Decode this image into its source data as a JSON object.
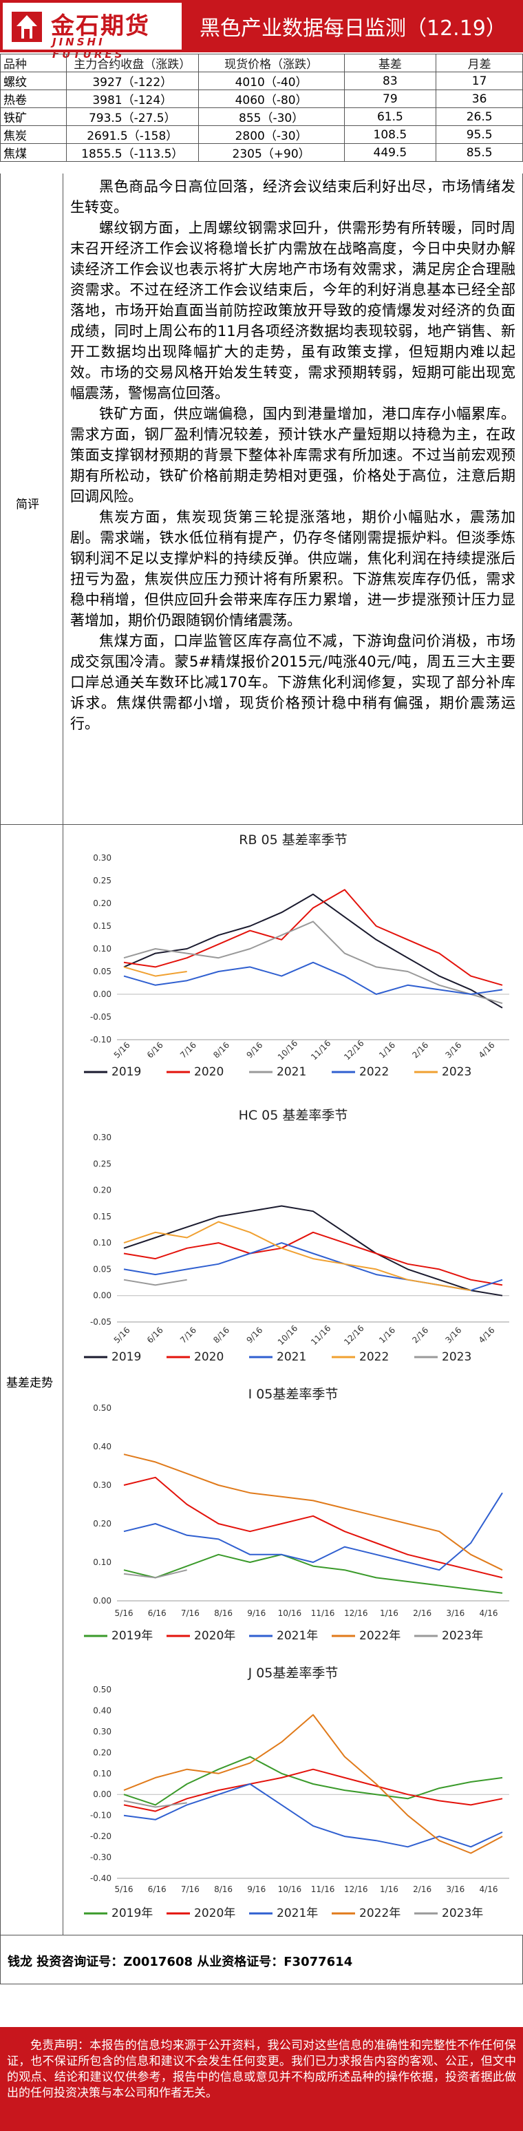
{
  "header": {
    "logo_cn": "金石期货",
    "logo_en": "JINSHI FUTURES",
    "title": "黑色产业数据每日监测（12.19）"
  },
  "table": {
    "columns": [
      "品种",
      "主力合约收盘（涨跌）",
      "现货价格（涨跌）",
      "基差",
      "月差"
    ],
    "rows": [
      [
        "螺纹",
        "3927（-122）",
        "4010（-40）",
        "83",
        "17"
      ],
      [
        "热卷",
        "3981（-124）",
        "4060（-80）",
        "79",
        "36"
      ],
      [
        "铁矿",
        "793.5（-27.5）",
        "855（-30）",
        "61.5",
        "26.5"
      ],
      [
        "焦炭",
        "2691.5（-158）",
        "2800（-30）",
        "108.5",
        "95.5"
      ],
      [
        "焦煤",
        "1855.5（-113.5）",
        "2305（+90）",
        "449.5",
        "85.5"
      ]
    ]
  },
  "commentary": {
    "label": "简评",
    "paragraphs": [
      "黑色商品今日高位回落，经济会议结束后利好出尽，市场情绪发生转变。",
      "螺纹钢方面，上周螺纹钢需求回升，供需形势有所转暖，同时周末召开经济工作会议将稳增长扩内需放在战略高度，今日中央财办解读经济工作会议也表示将扩大房地产市场有效需求，满足房企合理融资需求。不过在经济工作会议结束后，今年的利好消息基本已经全部落地，市场开始直面当前防控政策放开导致的疫情爆发对经济的负面成绩，同时上周公布的11月各项经济数据均表现较弱，地产销售、新开工数据均出现降幅扩大的走势，虽有政策支撑，但短期内难以起效。市场的交易风格开始发生转变，需求预期转弱，短期可能出现宽幅震荡，警惕高位回落。",
      "铁矿方面，供应端偏稳，国内到港量增加，港口库存小幅累库。需求方面，钢厂盈利情况较差，预计铁水产量短期以持稳为主，在政策面支撑钢材预期的背景下整体补库需求有所加速。不过当前宏观预期有所松动，铁矿价格前期走势相对更强，价格处于高位，注意后期回调风险。",
      "焦炭方面，焦炭现货第三轮提涨落地，期价小幅贴水，震荡加剧。需求端，铁水低位稍有提产，仍存冬储刚需提振炉料。但淡季炼钢利润不足以支撑炉料的持续反弹。供应端，焦化利润在持续提涨后扭亏为盈，焦炭供应压力预计将有所累积。下游焦炭库存仍低，需求稳中稍增，但供应回升会带来库存压力累增，进一步提涨预计压力显著增加，期价仍跟随钢价情绪震荡。",
      "焦煤方面，口岸监管区库存高位不减，下游询盘问价消极，市场成交氛围冷清。蒙5#精煤报价2015元/吨涨40元/吨，周五三大主要口岸总通关车数环比减170车。下游焦化利润修复，实现了部分补库诉求。焦煤供需都小增，现货价格预计稳中稍有偏强，期价震荡运行。"
    ]
  },
  "basis_label": "基差走势",
  "charts": [
    {
      "title": "RB 05 基差率季节",
      "type": "line",
      "ylim": [
        -0.1,
        0.3
      ],
      "yticks": [
        "0.30",
        "0.25",
        "0.20",
        "0.15",
        "0.10",
        "0.05",
        "0.00",
        "-0.05",
        "-0.10"
      ],
      "xticks": [
        "5/16",
        "6/16",
        "7/16",
        "8/16",
        "9/16",
        "10/16",
        "11/16",
        "12/16",
        "1/16",
        "2/16",
        "3/16",
        "4/16"
      ],
      "series": [
        {
          "name": "2019",
          "color": "#1a1a2e",
          "values": [
            0.06,
            0.09,
            0.1,
            0.13,
            0.15,
            0.18,
            0.22,
            0.17,
            0.12,
            0.08,
            0.04,
            0.01,
            -0.03
          ]
        },
        {
          "name": "2020",
          "color": "#e3120b",
          "values": [
            0.07,
            0.06,
            0.08,
            0.11,
            0.14,
            0.12,
            0.19,
            0.23,
            0.15,
            0.12,
            0.09,
            0.04,
            0.02
          ]
        },
        {
          "name": "2021",
          "color": "#999999",
          "values": [
            0.08,
            0.1,
            0.09,
            0.08,
            0.1,
            0.13,
            0.16,
            0.09,
            0.06,
            0.05,
            0.02,
            0.0,
            -0.02
          ]
        },
        {
          "name": "2022",
          "color": "#2f5fd0",
          "values": [
            0.04,
            0.02,
            0.03,
            0.05,
            0.06,
            0.04,
            0.07,
            0.04,
            0.0,
            0.02,
            0.01,
            0.0,
            0.01
          ]
        },
        {
          "name": "2023",
          "color": "#f0a030",
          "values": [
            0.06,
            0.04,
            0.05
          ]
        }
      ]
    },
    {
      "title": "HC 05 基差率季节",
      "type": "line",
      "ylim": [
        -0.05,
        0.3
      ],
      "yticks": [
        "0.30",
        "0.25",
        "0.20",
        "0.15",
        "0.10",
        "0.05",
        "0.00",
        "-0.05"
      ],
      "xticks": [
        "5/16",
        "6/16",
        "7/16",
        "8/16",
        "9/16",
        "10/16",
        "11/16",
        "12/16",
        "1/16",
        "2/16",
        "3/16",
        "4/16"
      ],
      "series": [
        {
          "name": "2019",
          "color": "#1a1a2e",
          "values": [
            0.09,
            0.11,
            0.13,
            0.15,
            0.16,
            0.17,
            0.16,
            0.12,
            0.08,
            0.05,
            0.03,
            0.01,
            0.0
          ]
        },
        {
          "name": "2020",
          "color": "#e3120b",
          "values": [
            0.08,
            0.07,
            0.09,
            0.1,
            0.08,
            0.09,
            0.12,
            0.1,
            0.08,
            0.06,
            0.05,
            0.03,
            0.02
          ]
        },
        {
          "name": "2021",
          "color": "#2f5fd0",
          "values": [
            0.05,
            0.04,
            0.05,
            0.06,
            0.08,
            0.1,
            0.08,
            0.06,
            0.04,
            0.03,
            0.02,
            0.01,
            0.03
          ]
        },
        {
          "name": "2022",
          "color": "#f0a030",
          "values": [
            0.1,
            0.12,
            0.11,
            0.14,
            0.12,
            0.09,
            0.07,
            0.06,
            0.05,
            0.03,
            0.02,
            0.01
          ]
        },
        {
          "name": "2023",
          "color": "#999999",
          "values": [
            0.03,
            0.02,
            0.03
          ]
        }
      ]
    },
    {
      "title": "I 05基差率季节",
      "type": "line",
      "ylim": [
        0.0,
        0.5
      ],
      "yticks": [
        "0.50",
        "0.40",
        "0.30",
        "0.20",
        "0.10",
        "0.00"
      ],
      "xticks": [
        "5/16",
        "6/16",
        "7/16",
        "8/16",
        "9/16",
        "10/16",
        "11/16",
        "12/16",
        "1/16",
        "2/16",
        "3/16",
        "4/16"
      ],
      "series": [
        {
          "name": "2019年",
          "color": "#3a9a2a",
          "values": [
            0.08,
            0.06,
            0.09,
            0.12,
            0.1,
            0.12,
            0.09,
            0.08,
            0.06,
            0.05,
            0.04,
            0.03,
            0.02
          ]
        },
        {
          "name": "2020年",
          "color": "#e3120b",
          "values": [
            0.3,
            0.32,
            0.25,
            0.2,
            0.18,
            0.2,
            0.22,
            0.18,
            0.15,
            0.12,
            0.1,
            0.08,
            0.06
          ]
        },
        {
          "name": "2021年",
          "color": "#2f5fd0",
          "values": [
            0.18,
            0.2,
            0.17,
            0.16,
            0.12,
            0.12,
            0.1,
            0.14,
            0.12,
            0.1,
            0.08,
            0.15,
            0.28
          ]
        },
        {
          "name": "2022年",
          "color": "#e07a1a",
          "values": [
            0.38,
            0.36,
            0.33,
            0.3,
            0.28,
            0.27,
            0.26,
            0.24,
            0.22,
            0.2,
            0.18,
            0.12,
            0.08
          ]
        },
        {
          "name": "2023年",
          "color": "#999999",
          "values": [
            0.07,
            0.06,
            0.08
          ]
        }
      ]
    },
    {
      "title": "J 05基差率季节",
      "type": "line",
      "ylim": [
        -0.4,
        0.5
      ],
      "yticks": [
        "0.50",
        "0.40",
        "0.30",
        "0.20",
        "0.10",
        "0.00",
        "-0.10",
        "-0.20",
        "-0.30",
        "-0.40"
      ],
      "xticks": [
        "5/16",
        "6/16",
        "7/16",
        "8/16",
        "9/16",
        "10/16",
        "11/16",
        "12/16",
        "1/16",
        "2/16",
        "3/16",
        "4/16"
      ],
      "series": [
        {
          "name": "2019年",
          "color": "#3a9a2a",
          "values": [
            0.0,
            -0.05,
            0.05,
            0.12,
            0.18,
            0.1,
            0.05,
            0.02,
            0.0,
            -0.02,
            0.03,
            0.06,
            0.08
          ]
        },
        {
          "name": "2020年",
          "color": "#e3120b",
          "values": [
            -0.05,
            -0.08,
            -0.02,
            0.02,
            0.05,
            0.08,
            0.12,
            0.08,
            0.04,
            0.0,
            -0.03,
            -0.05,
            -0.02
          ]
        },
        {
          "name": "2021年",
          "color": "#2f5fd0",
          "values": [
            -0.1,
            -0.12,
            -0.05,
            0.0,
            0.05,
            -0.05,
            -0.15,
            -0.2,
            -0.22,
            -0.25,
            -0.2,
            -0.25,
            -0.18
          ]
        },
        {
          "name": "2022年",
          "color": "#e07a1a",
          "values": [
            0.02,
            0.08,
            0.12,
            0.1,
            0.15,
            0.25,
            0.38,
            0.18,
            0.05,
            -0.1,
            -0.22,
            -0.28,
            -0.2
          ]
        },
        {
          "name": "2023年",
          "color": "#999999",
          "values": [
            -0.03,
            -0.06,
            -0.04
          ]
        }
      ]
    }
  ],
  "analyst": "钱龙 投资咨询证号：Z0017608  从业资格证号：F3077614",
  "disclaimer": "免责声明：本报告的信息均来源于公开资料，我公司对这些信息的准确性和完整性不作任何保证，也不保证所包含的信息和建议不会发生任何变更。我们已力求报告内容的客观、公正，但文中的观点、结论和建议仅供参考，报告中的信息或意见并不构成所述品种的操作依据，投资者据此做出的任何投资决策与本公司和作者无关。"
}
